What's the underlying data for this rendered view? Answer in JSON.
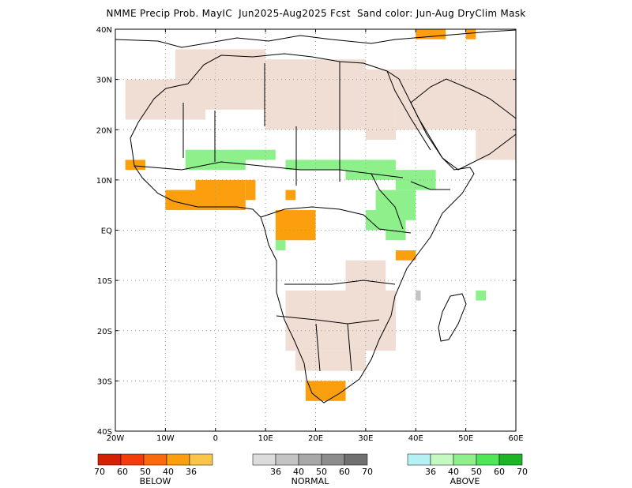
{
  "title": "NMME Precip Prob. MayIC  Jun2025-Aug2025 Fcst  Sand color: Jun-Aug DryClim Mask",
  "axes": {
    "lon_ticks": [
      "20W",
      "10W",
      "0",
      "10E",
      "20E",
      "30E",
      "40E",
      "50E",
      "60E"
    ],
    "lat_ticks": [
      "40N",
      "30N",
      "20N",
      "10N",
      "EQ",
      "10S",
      "20S",
      "30S",
      "40S"
    ],
    "lon_range": [
      -20,
      60
    ],
    "lat_range": [
      -40,
      40
    ],
    "grid": true
  },
  "colors": {
    "land_outline": "#000000",
    "dryclim_mask": "#f0ddd4",
    "grid": "#999999"
  },
  "legend": {
    "below": {
      "title": "BELOW",
      "labels": [
        "70",
        "60",
        "50",
        "40",
        "36"
      ],
      "colors": [
        "#d42106",
        "#f23c0a",
        "#fa6a0c",
        "#fb9f0e",
        "#fbc54a"
      ]
    },
    "normal": {
      "title": "NORMAL",
      "labels": [
        "36",
        "40",
        "50",
        "60",
        "70"
      ],
      "colors": [
        "#dcdcdc",
        "#c4c4c4",
        "#a8a8a8",
        "#8c8c8c",
        "#707070"
      ]
    },
    "above": {
      "title": "ABOVE",
      "labels": [
        "36",
        "40",
        "50",
        "60",
        "70"
      ],
      "colors": [
        "#b4f0f4",
        "#c4fac0",
        "#8ef08a",
        "#50e65a",
        "#1eb428"
      ]
    }
  },
  "regions": {
    "dry_mask": [
      [
        -18,
        30,
        -2,
        22
      ],
      [
        -8,
        36,
        10,
        24
      ],
      [
        10,
        34,
        30,
        20
      ],
      [
        30,
        32,
        36,
        18
      ],
      [
        36,
        32,
        60,
        20
      ],
      [
        14,
        -12,
        36,
        -24
      ],
      [
        16,
        -24,
        30,
        -28
      ],
      [
        26,
        -6,
        34,
        -14
      ],
      [
        52,
        20,
        60,
        14
      ]
    ],
    "below": [
      [
        -18,
        14,
        -14,
        12
      ],
      [
        -10,
        8,
        -2,
        4
      ],
      [
        -4,
        10,
        6,
        4
      ],
      [
        6,
        10,
        8,
        6
      ],
      [
        12,
        4,
        20,
        -2
      ],
      [
        14,
        8,
        16,
        6
      ],
      [
        18,
        -30,
        26,
        -34
      ],
      [
        36,
        -4,
        40,
        -6
      ],
      [
        40,
        40,
        46,
        38
      ],
      [
        50,
        40,
        52,
        38
      ]
    ],
    "normal": [
      [
        40,
        -12,
        41,
        -14
      ]
    ],
    "above": [
      [
        -6,
        16,
        6,
        12
      ],
      [
        4,
        16,
        12,
        14
      ],
      [
        14,
        14,
        26,
        12
      ],
      [
        26,
        14,
        36,
        10
      ],
      [
        36,
        12,
        44,
        8
      ],
      [
        32,
        8,
        40,
        2
      ],
      [
        30,
        4,
        38,
        0
      ],
      [
        34,
        0,
        38,
        -2
      ],
      [
        18,
        0,
        20,
        -2
      ],
      [
        12,
        -2,
        14,
        -4
      ],
      [
        52,
        -12,
        54,
        -14
      ]
    ]
  }
}
